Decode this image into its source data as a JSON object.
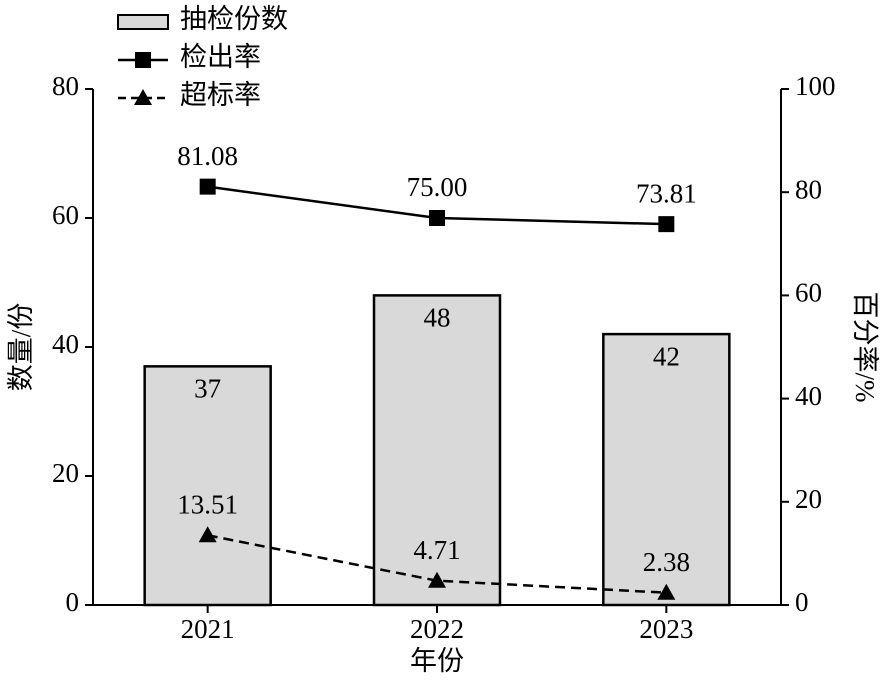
{
  "chart_data": {
    "type": "bar",
    "categories": [
      "2021",
      "2022",
      "2023"
    ],
    "xlabel": "年份",
    "ylabel": "数量/份",
    "y2label": "百分率/%",
    "ylim": [
      0,
      80
    ],
    "yticks": [
      0,
      20,
      40,
      60,
      80
    ],
    "y2lim": [
      0,
      100
    ],
    "y2ticks": [
      0,
      20,
      40,
      60,
      80,
      100
    ],
    "legend": "upper left",
    "series": [
      {
        "name": "抽检份数",
        "type": "bar",
        "color": "#d9d9d9",
        "values": [
          37,
          48,
          42
        ]
      },
      {
        "name": "检出率",
        "type": "line",
        "axis": "y2",
        "color": "#000000",
        "marker": "square",
        "line_style": "solid",
        "values": [
          81.08,
          75.0,
          73.81
        ],
        "value_labels": [
          "81.08",
          "75.00",
          "73.81"
        ]
      },
      {
        "name": "超标率",
        "type": "line",
        "axis": "y2",
        "color": "#000000",
        "marker": "triangle",
        "line_style": "dashed",
        "values": [
          13.51,
          4.71,
          2.38
        ],
        "value_labels": [
          "13.51",
          "4.71",
          "2.38"
        ]
      }
    ]
  }
}
